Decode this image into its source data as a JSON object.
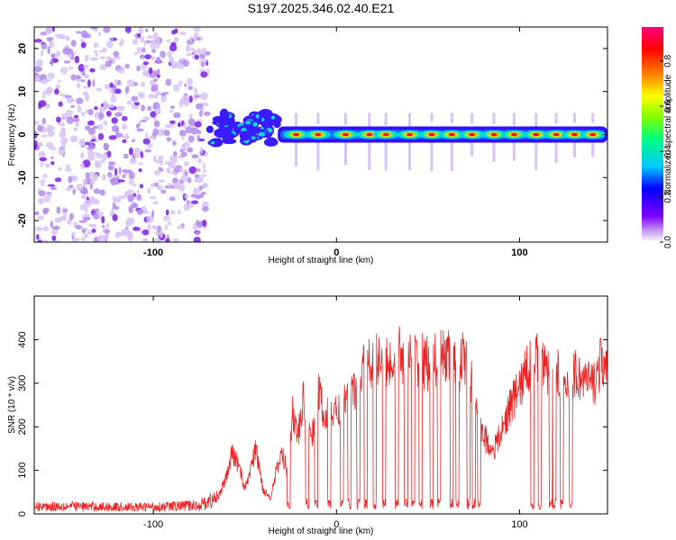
{
  "chart_data": [
    {
      "type": "heatmap",
      "title": "S197.2025.346.02.40.E21",
      "xlabel": "Height of straight line (km)",
      "ylabel": "Frequency (Hz)",
      "xlim": [
        -165,
        148
      ],
      "ylim": [
        -25,
        25
      ],
      "x_ticks": [
        -100,
        0,
        100
      ],
      "x_tick_labels": [
        "-100",
        "0",
        "100"
      ],
      "y_ticks": [
        -20,
        -10,
        0,
        10,
        20
      ],
      "y_tick_labels": [
        "-20",
        "-10",
        "0",
        "10",
        "20"
      ],
      "colorbar": {
        "label": "Normalized spectral amplitude",
        "range": [
          0,
          0.95
        ],
        "ticks": [
          0.0,
          0.2,
          0.4,
          0.6,
          0.8
        ],
        "tick_labels": [
          "0.0",
          "0.2",
          "0.4",
          "0.6",
          "0.8"
        ],
        "colors": [
          "#ffffff",
          "#c8a0f0",
          "#8000ff",
          "#0000ff",
          "#00c8ff",
          "#00ff80",
          "#ffff00",
          "#ff8000",
          "#ff0000",
          "#ff0080"
        ]
      },
      "regions": [
        {
          "name": "scattered noise",
          "x_range": [
            -165,
            -70
          ],
          "freq_range": [
            -25,
            25
          ],
          "amplitude": 0.05
        },
        {
          "name": "onset cluster",
          "x_range": [
            -70,
            -32
          ],
          "freq_range": [
            -2,
            5
          ],
          "amplitude": 0.2
        },
        {
          "name": "central band",
          "x_range": [
            -32,
            148
          ],
          "freq_range": [
            -1,
            1
          ],
          "amplitude": 0.95
        }
      ],
      "band_peaks_x": [
        -22,
        -10,
        5,
        18,
        27,
        40,
        52,
        63,
        74,
        86,
        97,
        109,
        120,
        130,
        140
      ]
    },
    {
      "type": "line",
      "title": "",
      "xlabel": "Height of straight line (km)",
      "ylabel": "SNR (10 * v/v)",
      "xlim": [
        -165,
        148
      ],
      "ylim": [
        0,
        500
      ],
      "x_ticks": [
        -100,
        0,
        100
      ],
      "x_tick_labels": [
        "-100",
        "0",
        "100"
      ],
      "y_ticks": [
        0,
        100,
        200,
        300,
        400
      ],
      "y_tick_labels": [
        "0",
        "100",
        "200",
        "300",
        "400"
      ],
      "color": "#ee2222",
      "series": [
        {
          "name": "SNR",
          "x": [
            -165,
            -150,
            -130,
            -110,
            -90,
            -75,
            -65,
            -60,
            -57,
            -53,
            -50,
            -47,
            -44,
            -40,
            -36,
            -33,
            -30,
            -27,
            -24,
            -21,
            -18,
            -14,
            -10,
            -6,
            -2,
            2,
            6,
            10,
            15,
            20,
            25,
            30,
            35,
            40,
            45,
            50,
            55,
            60,
            65,
            70,
            75,
            80,
            83,
            86,
            90,
            95,
            100,
            105,
            110,
            115,
            120,
            125,
            130,
            135,
            140,
            145,
            148
          ],
          "y": [
            18,
            20,
            18,
            17,
            19,
            22,
            40,
            90,
            150,
            120,
            60,
            110,
            160,
            60,
            40,
            100,
            150,
            110,
            250,
            190,
            280,
            180,
            300,
            240,
            250,
            260,
            300,
            310,
            360,
            380,
            390,
            370,
            400,
            380,
            390,
            370,
            380,
            400,
            360,
            390,
            300,
            200,
            170,
            160,
            200,
            270,
            310,
            370,
            380,
            350,
            380,
            300,
            350,
            330,
            320,
            380,
            340
          ]
        }
      ],
      "dropouts_x": [
        -26,
        -16,
        -11,
        -4,
        3,
        7,
        12,
        16,
        21,
        26,
        33,
        38,
        42,
        46,
        52,
        56,
        63,
        66,
        72,
        75,
        78,
        107,
        111,
        117,
        119,
        123,
        128
      ]
    }
  ]
}
